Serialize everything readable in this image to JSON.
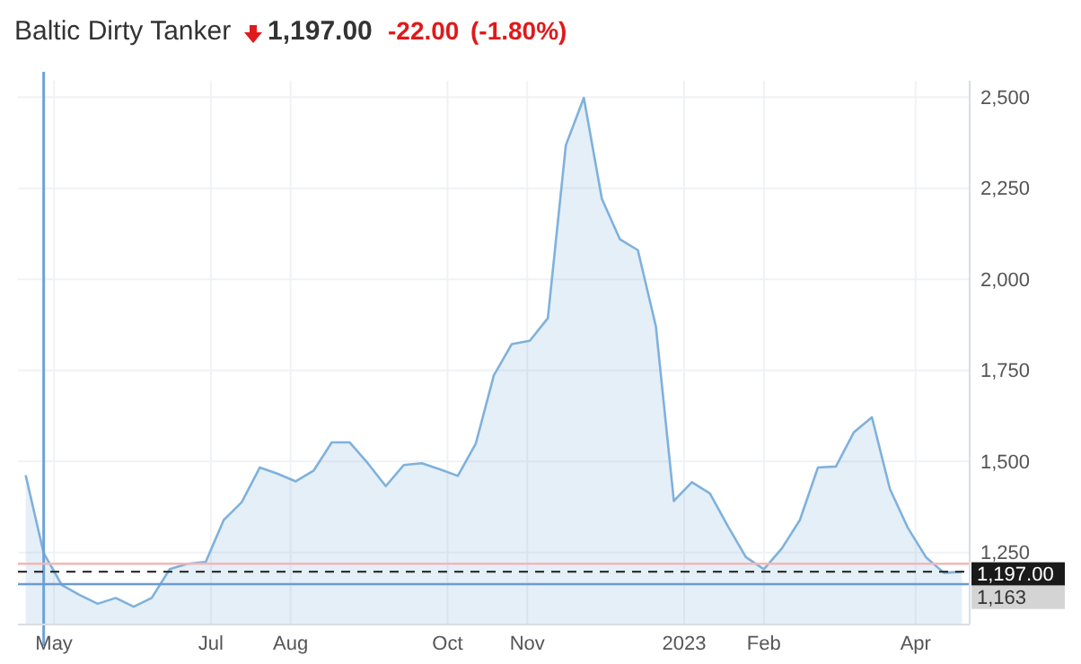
{
  "chart_data": {
    "type": "area",
    "title": "Baltic Dirty Tanker",
    "annotations": [
      "1,197.00",
      "-22.00",
      "(-1.80%)"
    ],
    "x": [
      "2022-04-20",
      "2022-04-27",
      "2022-05-04",
      "2022-05-11",
      "2022-05-18",
      "2022-05-25",
      "2022-06-01",
      "2022-06-08",
      "2022-06-15",
      "2022-06-22",
      "2022-06-29",
      "2022-07-06",
      "2022-07-13",
      "2022-07-20",
      "2022-07-27",
      "2022-08-03",
      "2022-08-10",
      "2022-08-17",
      "2022-08-24",
      "2022-08-31",
      "2022-09-07",
      "2022-09-14",
      "2022-09-21",
      "2022-09-28",
      "2022-10-05",
      "2022-10-12",
      "2022-10-19",
      "2022-10-26",
      "2022-11-02",
      "2022-11-09",
      "2022-11-16",
      "2022-11-23",
      "2022-11-30",
      "2022-12-07",
      "2022-12-14",
      "2022-12-21",
      "2022-12-28",
      "2023-01-04",
      "2023-01-11",
      "2023-01-18",
      "2023-01-25",
      "2023-02-01",
      "2023-02-08",
      "2023-02-15",
      "2023-02-22",
      "2023-03-01",
      "2023-03-08",
      "2023-03-15",
      "2023-03-22",
      "2023-03-29",
      "2023-04-05",
      "2023-04-12",
      "2023-04-19"
    ],
    "series": [
      {
        "color": "#7fb1dc",
        "values": [
          1462,
          1248,
          1161,
          1133,
          1109,
          1125,
          1101,
          1125,
          1204,
          1219,
          1224,
          1339,
          1388,
          1483,
          1466,
          1445,
          1475,
          1552,
          1552,
          1495,
          1432,
          1490,
          1495,
          1478,
          1460,
          1549,
          1736,
          1822,
          1831,
          1893,
          2368,
          2498,
          2221,
          2110,
          2080,
          1871,
          1391,
          1443,
          1412,
          1322,
          1237,
          1204,
          1261,
          1339,
          1483,
          1486,
          1580,
          1621,
          1424,
          1317,
          1237,
          1194,
          1197
        ]
      }
    ],
    "xlim": [
      "2022-04-17",
      "2023-04-22"
    ],
    "xticks": [
      {
        "value": "2022-05-01",
        "label": "May"
      },
      {
        "value": "2022-07-01",
        "label": "Jul"
      },
      {
        "value": "2022-08-01",
        "label": "Aug"
      },
      {
        "value": "2022-10-01",
        "label": "Oct"
      },
      {
        "value": "2022-11-01",
        "label": "Nov"
      },
      {
        "value": "2023-01-01",
        "label": "2023"
      },
      {
        "value": "2023-02-01",
        "label": "Feb"
      },
      {
        "value": "2023-04-01",
        "label": "Apr"
      }
    ],
    "ylim": [
      1052,
      2545
    ],
    "yticks": [
      {
        "value": 1250,
        "label": "1,250"
      },
      {
        "value": 1500,
        "label": "1,500"
      },
      {
        "value": 1750,
        "label": "1,750"
      },
      {
        "value": 2000,
        "label": "2,000"
      },
      {
        "value": 2250,
        "label": "2,250"
      },
      {
        "value": 2500,
        "label": "2,500"
      }
    ],
    "grid": true,
    "ref_lines": [
      {
        "axis": "x",
        "value": "2022-04-27",
        "color": "#6fa3d6"
      },
      {
        "axis": "y",
        "value": 1219,
        "color": "#f4b6b6"
      },
      {
        "axis": "y",
        "value": 1197,
        "label": "1,197.00",
        "color": "#333333",
        "line_style": "dashed"
      },
      {
        "axis": "y",
        "value": 1163,
        "label": "1,163",
        "color": "#6b9bcf"
      }
    ]
  }
}
